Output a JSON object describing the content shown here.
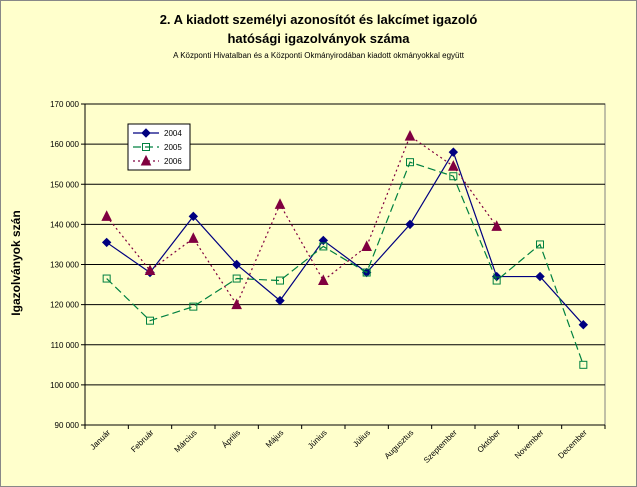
{
  "chart_data": {
    "type": "line",
    "title": "2. A kiadott személyi azonosítót és lakcímet igazoló",
    "title_line2": "hatósági igazolványok száma",
    "subtitle": "A Központi Hivatalban és a Központi Okmányirodában kiadott okmányokkal együtt",
    "xlabel": "",
    "ylabel": "Igazolványok szán",
    "ylim": [
      90000,
      170000
    ],
    "yticks": [
      90000,
      100000,
      110000,
      120000,
      130000,
      140000,
      150000,
      160000,
      170000
    ],
    "ytick_labels": [
      "90 000",
      "100 000",
      "110 000",
      "120 000",
      "130 000",
      "140 000",
      "150 000",
      "160 000",
      "170 000"
    ],
    "grid": "horizontal",
    "legend_position": "top-left",
    "categories": [
      "Január",
      "Február",
      "Március",
      "Április",
      "Május",
      "Június",
      "Július",
      "Augusztus",
      "Szeptember",
      "Október",
      "November",
      "December"
    ],
    "series": [
      {
        "name": "2004",
        "color": "#000080",
        "style": "solid",
        "marker": "diamond",
        "values": [
          135500,
          128000,
          142000,
          130000,
          121000,
          136000,
          128000,
          140000,
          158000,
          127000,
          127000,
          115000
        ]
      },
      {
        "name": "2005",
        "color": "#008040",
        "style": "dashed",
        "marker": "square",
        "values": [
          126500,
          116000,
          119500,
          126500,
          126000,
          134500,
          128000,
          155500,
          152000,
          126000,
          135000,
          105000
        ]
      },
      {
        "name": "2006",
        "color": "#800040",
        "style": "dotted",
        "marker": "triangle",
        "values": [
          142000,
          128500,
          136500,
          120000,
          145000,
          126000,
          134500,
          162000,
          154500,
          139500,
          null,
          null
        ]
      }
    ]
  }
}
